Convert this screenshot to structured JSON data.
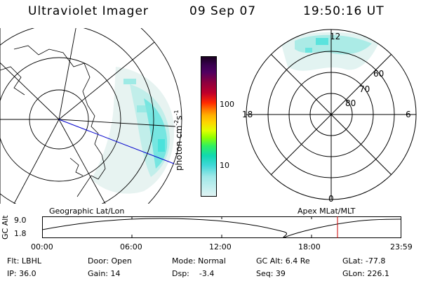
{
  "header": {
    "title": "Ultraviolet Imager",
    "date": "09 Sep 07",
    "time": "19:50:16 UT"
  },
  "colorbar": {
    "unit_label": "photon cm",
    "unit_sup_1": "-2",
    "unit_mid": "s",
    "unit_sup_2": "-1",
    "ticks": [
      "100",
      "10"
    ]
  },
  "left_panel": {
    "caption": "Geographic Lat/Lon"
  },
  "right_panel": {
    "caption": "Apex MLat/MLT",
    "mlt_labels": [
      "12",
      "18",
      "6",
      "0"
    ],
    "lat_labels": [
      "60",
      "70",
      "80"
    ]
  },
  "altitude_strip": {
    "axis_label": "GC Alt",
    "y_labels": [
      "9.0",
      "1.8"
    ],
    "time_ticks": [
      "00:00",
      "06:00",
      "12:00",
      "18:00",
      "23:59"
    ]
  },
  "info": {
    "flt": "Flt: LBHL",
    "ip": "IP: 36.0",
    "door": "Door: Open",
    "gain": "Gain: 14",
    "mode": "Mode: Normal",
    "dsp": "Dsp:    -3.4",
    "gcalt": "GC Alt: 6.4 Re",
    "seq": "Seq: 39",
    "glat": "GLat: -77.8",
    "glon": "GLon: 226.1"
  },
  "colors": {
    "aurora_cyan": "#38e0d8",
    "aurora_light": "#d8f0ee",
    "orbit_line": "#0000cc",
    "marker": "#cc0000"
  }
}
